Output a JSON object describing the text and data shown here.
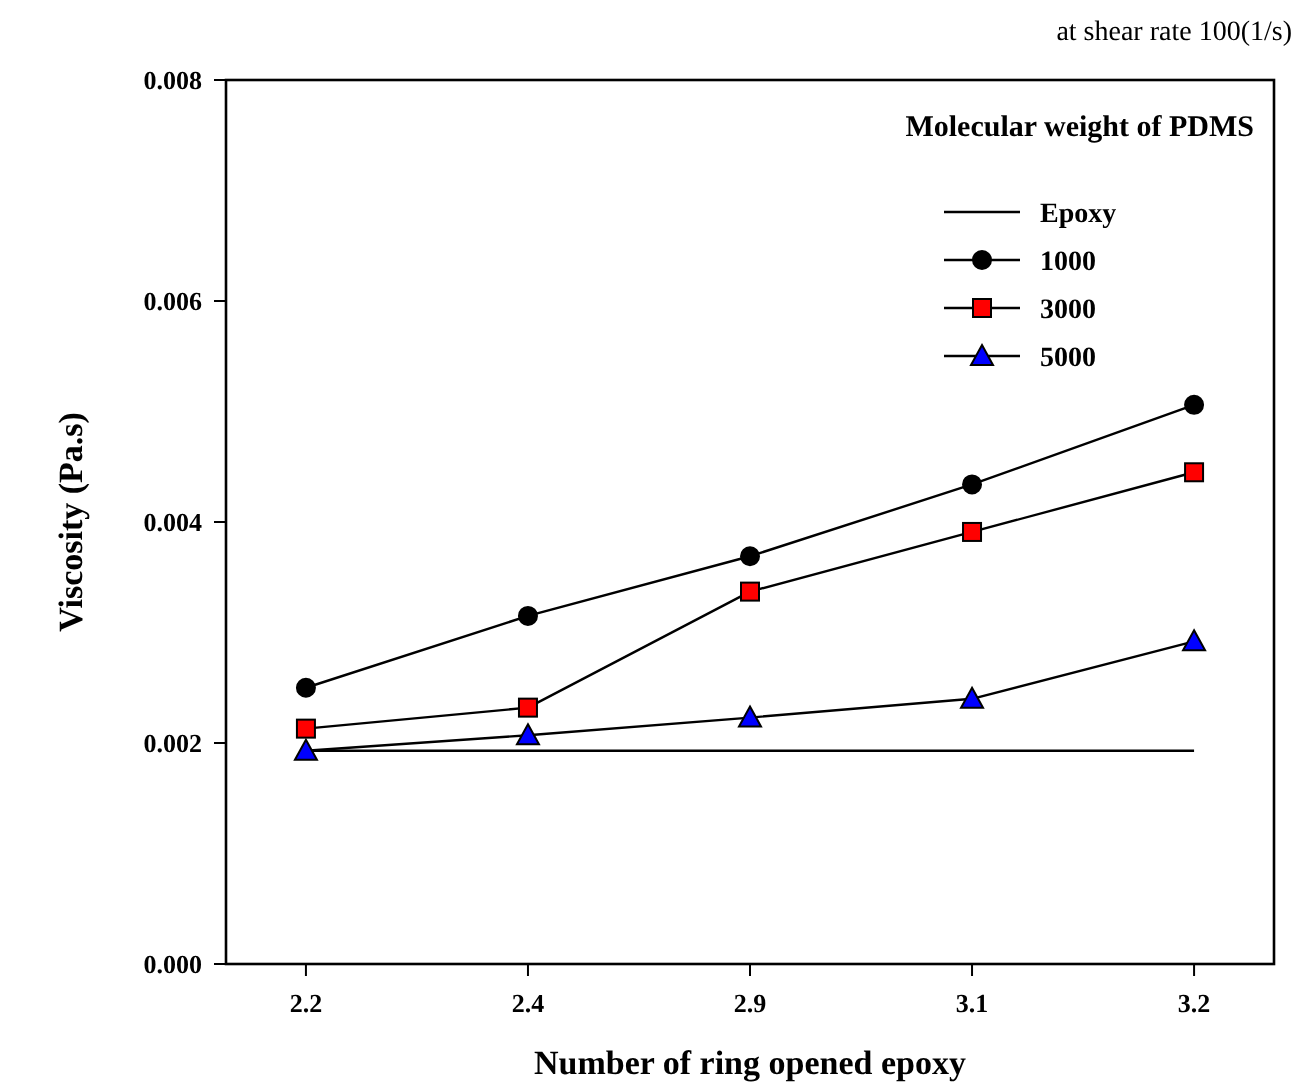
{
  "chart_data": {
    "type": "line",
    "xlabel": "Number of ring opened epoxy",
    "ylabel": "Viscosity (Pa.s)",
    "legend_title": "Molecular weight of PDMS",
    "annotations": [
      "at shear rate 100(1/s)"
    ],
    "categories": [
      "2.2",
      "2.4",
      "2.9",
      "3.1",
      "3.2"
    ],
    "ylim": [
      0,
      0.008
    ],
    "yticks": [
      {
        "value": 0,
        "label": "0.000"
      },
      {
        "value": 0.002,
        "label": "0.002"
      },
      {
        "value": 0.004,
        "label": "0.004"
      },
      {
        "value": 0.006,
        "label": "0.006"
      },
      {
        "value": 0.008,
        "label": "0.008"
      }
    ],
    "grid": false,
    "legend": "top right",
    "series": [
      {
        "name": "Epoxy",
        "color": "#000000",
        "marker": "none",
        "values": [
          0.00193,
          0.00193,
          0.00193,
          0.00193,
          0.00193
        ]
      },
      {
        "name": "1000",
        "color": "#000000",
        "marker": "circle",
        "values": [
          0.0025,
          0.00315,
          0.00369,
          0.00434,
          0.00506
        ]
      },
      {
        "name": "3000",
        "color": "#ff0000",
        "marker": "square",
        "values": [
          0.00213,
          0.00232,
          0.00337,
          0.00391,
          0.00445
        ]
      },
      {
        "name": "5000",
        "color": "#0000ff",
        "marker": "triangle",
        "values": [
          0.00193,
          0.00207,
          0.00223,
          0.0024,
          0.00292
        ]
      }
    ]
  }
}
